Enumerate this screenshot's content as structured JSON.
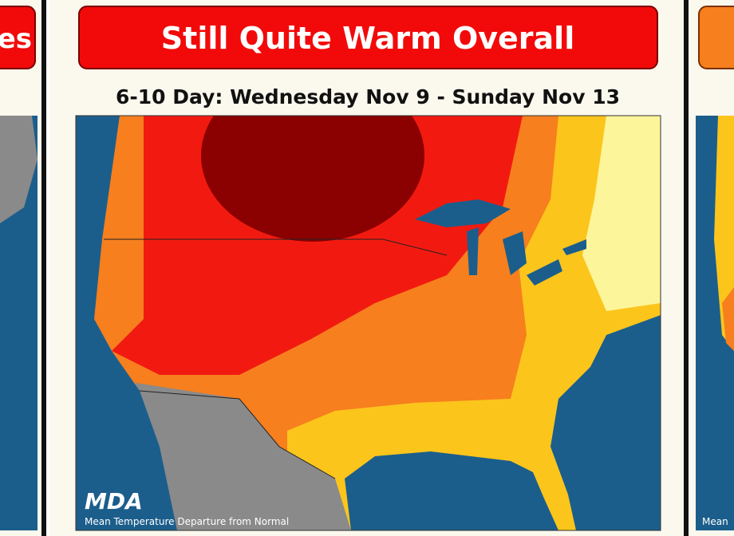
{
  "panels": [
    {
      "title": "es"
    },
    {
      "title": "Still Quite Warm Overall",
      "subtitle": "6-10 Day: Wednesday Nov 9 - Sunday Nov 13",
      "logo": "MDA",
      "caption": "Mean Temperature Departure from Normal"
    },
    {
      "caption": "Mean"
    }
  ]
}
